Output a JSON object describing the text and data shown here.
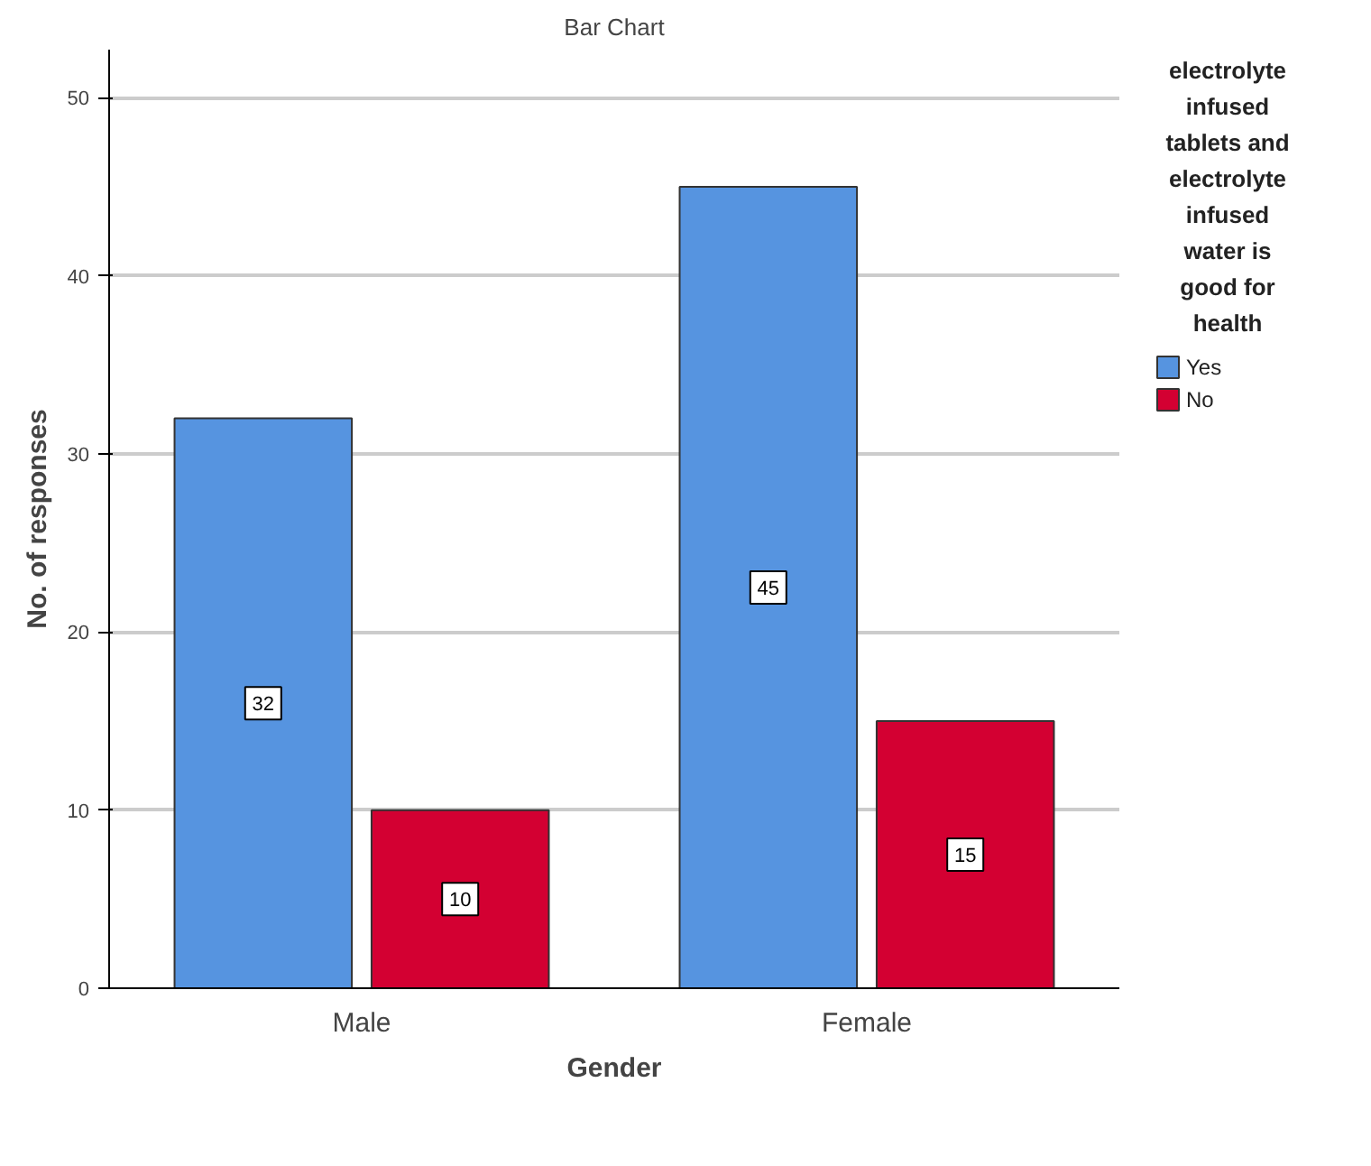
{
  "chart_data": {
    "type": "bar",
    "title": "Bar Chart",
    "xlabel": "Gender",
    "ylabel": "No. of responses",
    "legend_title": "electrolyte infused tablets and electrolyte infused water is good for health",
    "categories": [
      "Male",
      "Female"
    ],
    "series": [
      {
        "name": "Yes",
        "color": "#5694e0",
        "values": [
          32,
          45
        ]
      },
      {
        "name": "No",
        "color": "#d30032",
        "values": [
          10,
          15
        ]
      }
    ],
    "ylim": [
      0,
      52.7
    ],
    "yticks": [
      0,
      10,
      20,
      30,
      40,
      50
    ],
    "grid": "y",
    "legend": "top right",
    "data_labels": true
  }
}
